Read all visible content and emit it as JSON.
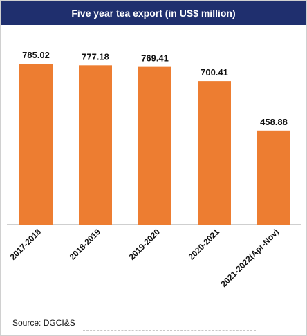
{
  "header": {
    "title": "Five year tea export (in US$ million)"
  },
  "chart_data": {
    "type": "bar",
    "categories": [
      "2017-2018",
      "2018-2019",
      "2019-2020",
      "2020-2021",
      "2021-2022(Apr-Nov)"
    ],
    "values": [
      785.02,
      777.18,
      769.41,
      700.41,
      458.88
    ],
    "value_labels": [
      "785.02",
      "777.18",
      "769.41",
      "700.41",
      "458.88"
    ],
    "title": "Five year tea export (in US$ million)",
    "xlabel": "",
    "ylabel": "",
    "ylim": [
      0,
      800
    ],
    "grid": false,
    "legend": "none",
    "colors": {
      "bar": "#ed7d31",
      "header": "#1f2f6e"
    }
  },
  "footer": {
    "source": "Source: DGCI&S"
  }
}
